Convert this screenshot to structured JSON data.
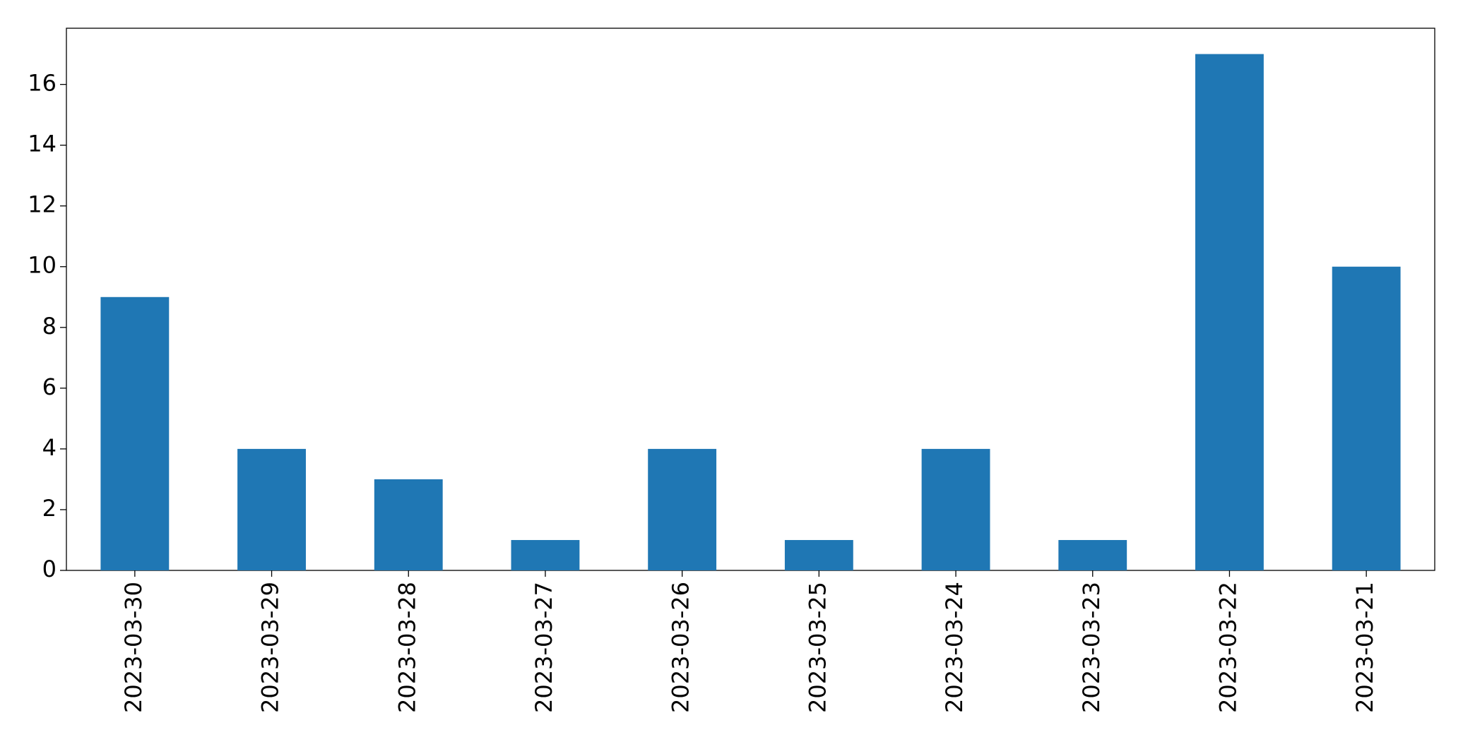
{
  "chart_data": {
    "type": "bar",
    "categories": [
      "2023-03-30",
      "2023-03-29",
      "2023-03-28",
      "2023-03-27",
      "2023-03-26",
      "2023-03-25",
      "2023-03-24",
      "2023-03-23",
      "2023-03-22",
      "2023-03-21"
    ],
    "values": [
      9,
      4,
      3,
      1,
      4,
      1,
      4,
      1,
      17,
      10
    ],
    "color": "#1f77b4",
    "ylim": [
      0,
      17.85
    ],
    "yticks": [
      0,
      2,
      4,
      6,
      8,
      10,
      12,
      14,
      16
    ],
    "grid": false
  }
}
